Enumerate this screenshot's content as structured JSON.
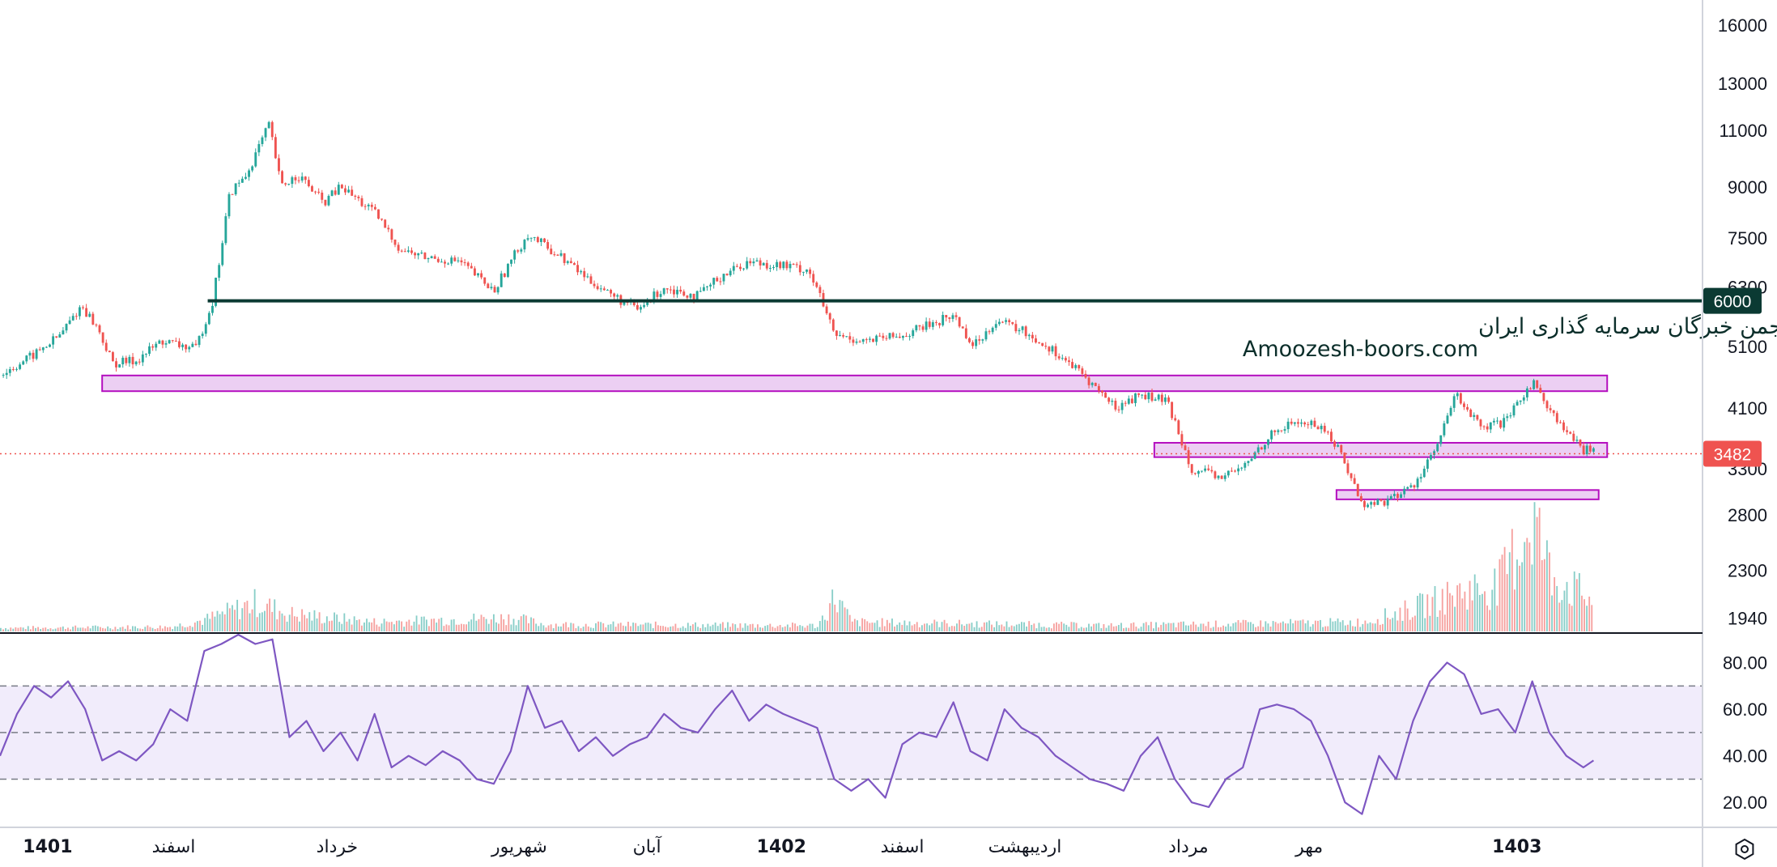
{
  "colors": {
    "up": "#26a69a",
    "down": "#ef5350",
    "level_line": "#0b3a33",
    "zone_fill": "#eccff3",
    "zone_stroke": "#b40fbf",
    "rsi_line": "#7e57c2",
    "rsi_band": "#f1ecfb",
    "price_badge": "#ef5350",
    "level_badge": "#0b3a33"
  },
  "watermark": {
    "line1": "انجمن خبرگان سرمایه گذاری ایران",
    "line2": "Amoozesh-boors.com"
  },
  "settings_icon": "gear-icon",
  "chart_data": [
    {
      "type": "candlestick",
      "title": "",
      "price_scale": "log",
      "y_ticks": [
        16000,
        13000,
        11000,
        9000,
        7500,
        6300,
        5100,
        4100,
        3300,
        2800,
        2300,
        1940
      ],
      "ylim": [
        1850,
        17500
      ],
      "current_price": 3482,
      "current_price_label": "3482",
      "horizontal_level": 6000,
      "horizontal_level_label": "6000",
      "zones": [
        {
          "from_x": 0.06,
          "to_x": 0.944,
          "low": 4350,
          "high": 4600
        },
        {
          "from_x": 0.678,
          "to_x": 0.944,
          "low": 3440,
          "high": 3620
        },
        {
          "from_x": 0.785,
          "to_x": 0.939,
          "low": 2960,
          "high": 3060
        }
      ],
      "x_labels": [
        {
          "text": "1401",
          "bold": true,
          "x": 0.028
        },
        {
          "text": "اسفند",
          "bold": false,
          "x": 0.102
        },
        {
          "text": "خرداد",
          "bold": false,
          "x": 0.198
        },
        {
          "text": "شهریور",
          "bold": false,
          "x": 0.305
        },
        {
          "text": "آبان",
          "bold": false,
          "x": 0.38
        },
        {
          "text": "1402",
          "bold": true,
          "x": 0.459
        },
        {
          "text": "اسفند",
          "bold": false,
          "x": 0.53
        },
        {
          "text": "اردیبهشت",
          "bold": false,
          "x": 0.602
        },
        {
          "text": "مرداد",
          "bold": false,
          "x": 0.698
        },
        {
          "text": "مهر",
          "bold": false,
          "x": 0.769
        },
        {
          "text": "1403",
          "bold": true,
          "x": 0.891
        }
      ],
      "price_path": [
        [
          0.0,
          4600
        ],
        [
          0.02,
          4950
        ],
        [
          0.035,
          5300
        ],
        [
          0.048,
          5900
        ],
        [
          0.058,
          5400
        ],
        [
          0.066,
          4800
        ],
        [
          0.08,
          4850
        ],
        [
          0.095,
          5200
        ],
        [
          0.115,
          5050
        ],
        [
          0.125,
          6000
        ],
        [
          0.13,
          7200
        ],
        [
          0.135,
          8800
        ],
        [
          0.145,
          9400
        ],
        [
          0.158,
          11200
        ],
        [
          0.165,
          9000
        ],
        [
          0.175,
          9400
        ],
        [
          0.19,
          8500
        ],
        [
          0.2,
          9000
        ],
        [
          0.22,
          8200
        ],
        [
          0.235,
          7200
        ],
        [
          0.25,
          7000
        ],
        [
          0.27,
          6900
        ],
        [
          0.29,
          6200
        ],
        [
          0.31,
          7600
        ],
        [
          0.33,
          7000
        ],
        [
          0.345,
          6500
        ],
        [
          0.36,
          6100
        ],
        [
          0.375,
          5800
        ],
        [
          0.39,
          6300
        ],
        [
          0.41,
          6100
        ],
        [
          0.425,
          6600
        ],
        [
          0.44,
          6900
        ],
        [
          0.46,
          6800
        ],
        [
          0.475,
          6700
        ],
        [
          0.49,
          5300
        ],
        [
          0.51,
          5200
        ],
        [
          0.53,
          5300
        ],
        [
          0.545,
          5500
        ],
        [
          0.56,
          5700
        ],
        [
          0.572,
          5100
        ],
        [
          0.585,
          5600
        ],
        [
          0.6,
          5400
        ],
        [
          0.62,
          5000
        ],
        [
          0.64,
          4500
        ],
        [
          0.655,
          4100
        ],
        [
          0.67,
          4300
        ],
        [
          0.685,
          4200
        ],
        [
          0.7,
          3300
        ],
        [
          0.715,
          3200
        ],
        [
          0.73,
          3300
        ],
        [
          0.745,
          3700
        ],
        [
          0.76,
          3900
        ],
        [
          0.775,
          3850
        ],
        [
          0.785,
          3600
        ],
        [
          0.8,
          2900
        ],
        [
          0.815,
          2950
        ],
        [
          0.83,
          3100
        ],
        [
          0.845,
          3600
        ],
        [
          0.855,
          4300
        ],
        [
          0.87,
          3800
        ],
        [
          0.885,
          3900
        ],
        [
          0.9,
          4500
        ],
        [
          0.915,
          3900
        ],
        [
          0.93,
          3500
        ],
        [
          0.936,
          3600
        ]
      ],
      "volume_path": [
        [
          0.0,
          0.03
        ],
        [
          0.1,
          0.04
        ],
        [
          0.12,
          0.1
        ],
        [
          0.15,
          0.25
        ],
        [
          0.17,
          0.15
        ],
        [
          0.22,
          0.08
        ],
        [
          0.3,
          0.12
        ],
        [
          0.32,
          0.06
        ],
        [
          0.48,
          0.05
        ],
        [
          0.49,
          0.3
        ],
        [
          0.5,
          0.08
        ],
        [
          0.65,
          0.05
        ],
        [
          0.8,
          0.08
        ],
        [
          0.83,
          0.2
        ],
        [
          0.86,
          0.35
        ],
        [
          0.88,
          0.4
        ],
        [
          0.9,
          1.0
        ],
        [
          0.91,
          0.5
        ],
        [
          0.936,
          0.25
        ]
      ]
    },
    {
      "type": "line",
      "name": "",
      "y_ticks": [
        80,
        60,
        40,
        20
      ],
      "y_tick_labels": [
        "80.00",
        "60.00",
        "40.00",
        "20.00"
      ],
      "ylim": [
        10,
        92
      ],
      "band": [
        30,
        70
      ],
      "midline": 50,
      "values": [
        [
          0.0,
          40
        ],
        [
          0.01,
          58
        ],
        [
          0.02,
          70
        ],
        [
          0.03,
          65
        ],
        [
          0.04,
          72
        ],
        [
          0.05,
          60
        ],
        [
          0.06,
          38
        ],
        [
          0.07,
          42
        ],
        [
          0.08,
          38
        ],
        [
          0.09,
          45
        ],
        [
          0.1,
          60
        ],
        [
          0.11,
          55
        ],
        [
          0.12,
          85
        ],
        [
          0.13,
          88
        ],
        [
          0.14,
          92
        ],
        [
          0.15,
          88
        ],
        [
          0.16,
          90
        ],
        [
          0.17,
          48
        ],
        [
          0.18,
          55
        ],
        [
          0.19,
          42
        ],
        [
          0.2,
          50
        ],
        [
          0.21,
          38
        ],
        [
          0.22,
          58
        ],
        [
          0.23,
          35
        ],
        [
          0.24,
          40
        ],
        [
          0.25,
          36
        ],
        [
          0.26,
          42
        ],
        [
          0.27,
          38
        ],
        [
          0.28,
          30
        ],
        [
          0.29,
          28
        ],
        [
          0.3,
          42
        ],
        [
          0.31,
          70
        ],
        [
          0.32,
          52
        ],
        [
          0.33,
          55
        ],
        [
          0.34,
          42
        ],
        [
          0.35,
          48
        ],
        [
          0.36,
          40
        ],
        [
          0.37,
          45
        ],
        [
          0.38,
          48
        ],
        [
          0.39,
          58
        ],
        [
          0.4,
          52
        ],
        [
          0.41,
          50
        ],
        [
          0.42,
          60
        ],
        [
          0.43,
          68
        ],
        [
          0.44,
          55
        ],
        [
          0.45,
          62
        ],
        [
          0.46,
          58
        ],
        [
          0.47,
          55
        ],
        [
          0.48,
          52
        ],
        [
          0.49,
          30
        ],
        [
          0.5,
          25
        ],
        [
          0.51,
          30
        ],
        [
          0.52,
          22
        ],
        [
          0.53,
          45
        ],
        [
          0.54,
          50
        ],
        [
          0.55,
          48
        ],
        [
          0.56,
          63
        ],
        [
          0.57,
          42
        ],
        [
          0.58,
          38
        ],
        [
          0.59,
          60
        ],
        [
          0.6,
          52
        ],
        [
          0.61,
          48
        ],
        [
          0.62,
          40
        ],
        [
          0.63,
          35
        ],
        [
          0.64,
          30
        ],
        [
          0.65,
          28
        ],
        [
          0.66,
          25
        ],
        [
          0.67,
          40
        ],
        [
          0.68,
          48
        ],
        [
          0.69,
          30
        ],
        [
          0.7,
          20
        ],
        [
          0.71,
          18
        ],
        [
          0.72,
          30
        ],
        [
          0.73,
          35
        ],
        [
          0.74,
          60
        ],
        [
          0.75,
          62
        ],
        [
          0.76,
          60
        ],
        [
          0.77,
          55
        ],
        [
          0.78,
          40
        ],
        [
          0.79,
          20
        ],
        [
          0.8,
          15
        ],
        [
          0.81,
          40
        ],
        [
          0.82,
          30
        ],
        [
          0.83,
          55
        ],
        [
          0.84,
          72
        ],
        [
          0.85,
          80
        ],
        [
          0.86,
          75
        ],
        [
          0.87,
          58
        ],
        [
          0.88,
          60
        ],
        [
          0.89,
          50
        ],
        [
          0.9,
          72
        ],
        [
          0.91,
          50
        ],
        [
          0.92,
          40
        ],
        [
          0.93,
          35
        ],
        [
          0.936,
          38
        ]
      ]
    }
  ]
}
